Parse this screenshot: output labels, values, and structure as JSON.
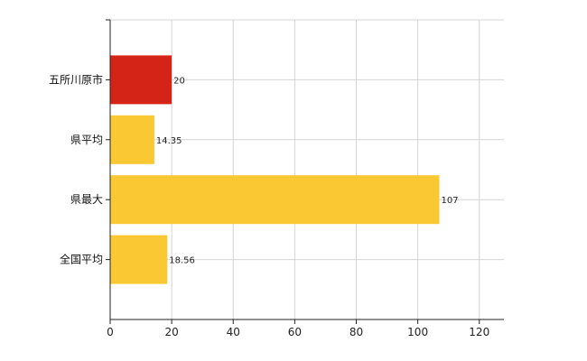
{
  "chart_data": {
    "type": "bar",
    "orientation": "horizontal",
    "categories": [
      "五所川原市",
      "県平均",
      "県最大",
      "全国平均"
    ],
    "values": [
      20,
      14.35,
      107,
      18.56
    ],
    "value_labels": [
      "20",
      "14.35",
      "107",
      "18.56"
    ],
    "colors": [
      "#d42418",
      "#f9c832",
      "#f9c832",
      "#f9c832"
    ],
    "xlim": [
      0,
      128
    ],
    "xticks": [
      0,
      20,
      40,
      60,
      80,
      100,
      120
    ],
    "grid": true,
    "legend": "none"
  }
}
